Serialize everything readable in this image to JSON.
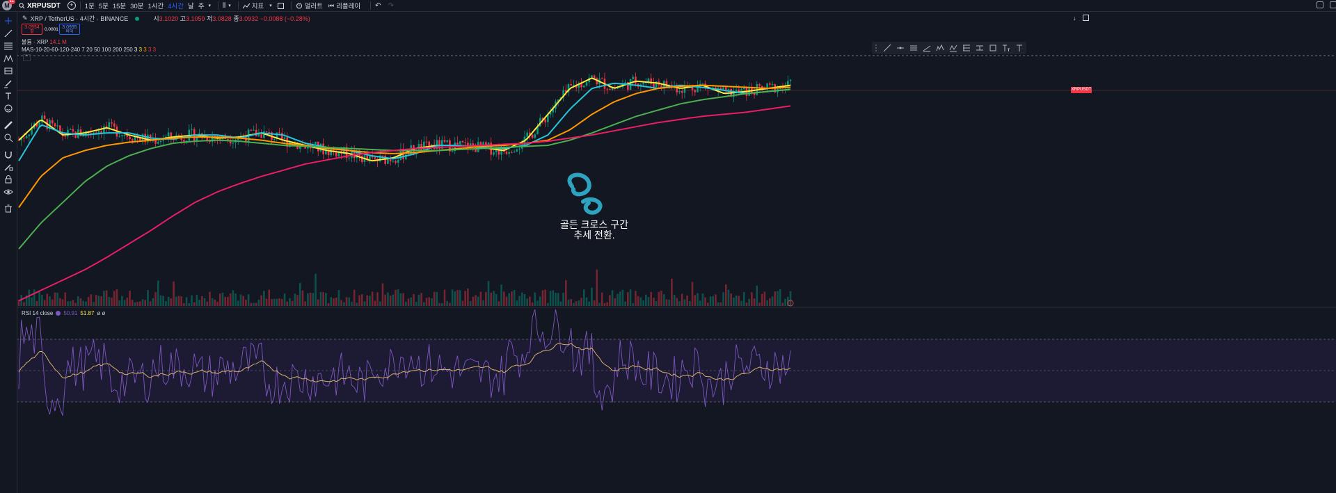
{
  "topbar": {
    "avatar_letter": "M",
    "notif_count": "11",
    "symbol": "XRPUSDT",
    "timeframes": [
      "1분",
      "5분",
      "15분",
      "30분",
      "1시간",
      "4시간",
      "날",
      "주"
    ],
    "active_timeframe_index": 5,
    "indicators_label": "지표",
    "alert_label": "얼러트",
    "replay_label": "리플레이"
  },
  "legend": {
    "title": "XRP / TetherUS · 4시간 · BINANCE",
    "open_k": "시",
    "open_v": "3.1020",
    "high_k": "고",
    "high_v": "3.1059",
    "low_k": "저",
    "low_v": "3.0828",
    "close_k": "종",
    "close_v": "3.0932",
    "change_v": "−0.0088 (−0.28%)",
    "sell_price": "3.0934",
    "sell_label": "팔",
    "buy_price": "3.0935",
    "buy_label": "바이",
    "spread": "0.0001",
    "volume_label": "볼륨 · XRP",
    "volume_value": "14.1 M",
    "ma_label": "MAS-10-20-60-120-240 7 20 50 100 200 250",
    "ma_vals": [
      "3",
      "3",
      "3",
      "3",
      "3"
    ]
  },
  "rsi": {
    "label": "RSI 14 close",
    "v1": "50.91",
    "v2": "51.87",
    "v3": "ø ø"
  },
  "price_tag": "XRPUSDT",
  "annotation": {
    "line1": "골든 크로스 구간",
    "line2": "추세 전환."
  },
  "colors": {
    "up": "#089981",
    "down": "#f23645",
    "ma10": "#ffeb3b",
    "ma20": "#26c6da",
    "ma60": "#ff9800",
    "ma120": "#4caf50",
    "ma240": "#e91e63",
    "rsi": "#7e57c2",
    "rsi_ma": "#d4b06a",
    "annotation": "#2ea3c0"
  },
  "icons": {
    "left_toolbar": [
      "cursor-icon",
      "trendline-icon",
      "fib-icon",
      "pattern-icon",
      "forecast-icon",
      "brush-icon",
      "text-icon",
      "emoji-icon",
      "ruler-icon",
      "zoom-icon",
      "magnet-icon",
      "lock-draw-icon",
      "lock-icon",
      "eye-icon",
      "trash-icon"
    ],
    "float_toolbar": [
      "ray-icon",
      "hline-icon",
      "channel-icon",
      "pitchfork-icon",
      "elliott-icon",
      "abcd-icon",
      "fib-retracement-icon",
      "range-icon",
      "rectangle-icon",
      "text-size-icon",
      "text-icon"
    ]
  },
  "chart_data": {
    "type": "line",
    "title": "XRP / TetherUS · 4시간 · BINANCE",
    "series": [
      {
        "name": "MA 10",
        "values": [
          2.55,
          2.75,
          2.6,
          2.62,
          2.67,
          2.6,
          2.55,
          2.58,
          2.6,
          2.57,
          2.58,
          2.62,
          2.55,
          2.5,
          2.45,
          2.42,
          2.35,
          2.38,
          2.47,
          2.5,
          2.5,
          2.48,
          2.45,
          2.55,
          2.8,
          3.05,
          3.15,
          3.05,
          3.12,
          3.1,
          3.05,
          3.08,
          3.0,
          3.02,
          3.05,
          3.08
        ]
      },
      {
        "name": "MA 20",
        "values": [
          2.35,
          2.7,
          2.62,
          2.6,
          2.62,
          2.62,
          2.57,
          2.56,
          2.6,
          2.6,
          2.57,
          2.62,
          2.6,
          2.52,
          2.48,
          2.45,
          2.4,
          2.37,
          2.42,
          2.5,
          2.5,
          2.48,
          2.47,
          2.5,
          2.6,
          2.85,
          3.05,
          3.1,
          3.08,
          3.05,
          3.08,
          3.06,
          3.03,
          3.0,
          3.02,
          3.04
        ]
      },
      {
        "name": "MA 60",
        "values": [
          1.9,
          2.2,
          2.38,
          2.45,
          2.5,
          2.53,
          2.55,
          2.57,
          2.58,
          2.58,
          2.57,
          2.55,
          2.52,
          2.5,
          2.47,
          2.45,
          2.43,
          2.42,
          2.43,
          2.45,
          2.47,
          2.49,
          2.5,
          2.52,
          2.55,
          2.65,
          2.8,
          2.92,
          3.0,
          3.05,
          3.07,
          3.08,
          3.07,
          3.06,
          3.05,
          3.06
        ]
      },
      {
        "name": "MA 120",
        "values": [
          1.5,
          1.75,
          1.95,
          2.15,
          2.3,
          2.4,
          2.47,
          2.52,
          2.54,
          2.55,
          2.54,
          2.52,
          2.5,
          2.49,
          2.48,
          2.47,
          2.46,
          2.45,
          2.45,
          2.45,
          2.46,
          2.47,
          2.48,
          2.49,
          2.5,
          2.55,
          2.62,
          2.7,
          2.78,
          2.84,
          2.9,
          2.94,
          2.97,
          3.0,
          3.02,
          3.04
        ]
      },
      {
        "name": "MA 240",
        "values": [
          1.0,
          1.1,
          1.2,
          1.3,
          1.42,
          1.55,
          1.68,
          1.82,
          1.95,
          2.05,
          2.13,
          2.2,
          2.26,
          2.32,
          2.36,
          2.4,
          2.43,
          2.45,
          2.47,
          2.48,
          2.49,
          2.5,
          2.51,
          2.52,
          2.54,
          2.57,
          2.6,
          2.64,
          2.68,
          2.72,
          2.75,
          2.78,
          2.8,
          2.82,
          2.85,
          2.88
        ]
      }
    ]
  }
}
